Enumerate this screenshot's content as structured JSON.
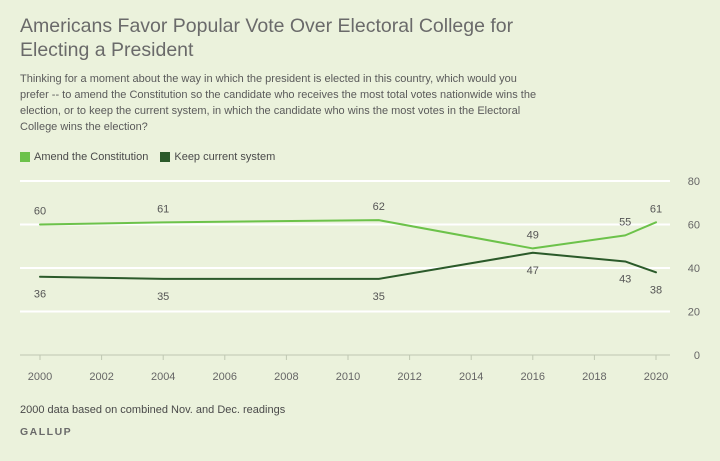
{
  "title": "Americans Favor Popular Vote Over Electoral College for Electing a President",
  "subtitle": "Thinking for a moment about the way in which the president is elected in this country, which would you prefer -- to amend the Constitution so the candidate who receives the most total votes nationwide wins the election, or to keep the current system, in which the candidate who wins the most votes in the Electoral College wins the election?",
  "footnote": "2000 data based on combined Nov. and Dec. readings",
  "brand": "GALLUP",
  "chart_data": {
    "type": "line",
    "title": "Americans Favor Popular Vote Over Electoral College for Electing a President",
    "xlabel": "",
    "ylabel": "",
    "xlim": [
      2000,
      2020
    ],
    "ylim": [
      0,
      80
    ],
    "x_ticks": [
      2000,
      2002,
      2004,
      2006,
      2008,
      2010,
      2012,
      2014,
      2016,
      2018,
      2020
    ],
    "y_ticks": [
      0,
      20,
      40,
      60,
      80
    ],
    "grid": true,
    "legend_position": "top-left",
    "series": [
      {
        "name": "Amend the Constitution",
        "color": "#6cc24a",
        "x": [
          2000,
          2004,
          2011,
          2016,
          2019,
          2020
        ],
        "values": [
          60,
          61,
          62,
          49,
          55,
          61
        ],
        "label_side": "above"
      },
      {
        "name": "Keep current system",
        "color": "#2b5a2a",
        "x": [
          2000,
          2004,
          2011,
          2016,
          2019,
          2020
        ],
        "values": [
          36,
          35,
          35,
          47,
          43,
          38
        ],
        "label_side": "below"
      }
    ]
  }
}
